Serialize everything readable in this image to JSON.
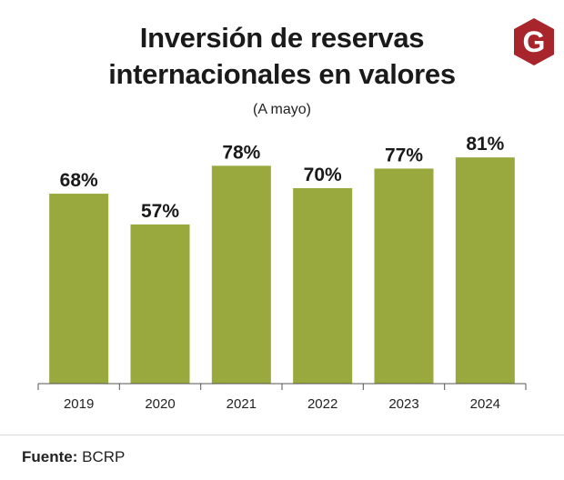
{
  "logo": {
    "letter": "G",
    "color": "#a8252b"
  },
  "chart_data": {
    "type": "bar",
    "title": "Inversión de reservas internacionales en valores",
    "title_lines": [
      "Inversión de reservas",
      "internacionales en valores"
    ],
    "subtitle": "(A mayo)",
    "categories": [
      "2019",
      "2020",
      "2021",
      "2022",
      "2023",
      "2024"
    ],
    "values": [
      68,
      57,
      78,
      70,
      77,
      81
    ],
    "labels": [
      "68%",
      "57%",
      "78%",
      "70%",
      "77%",
      "81%"
    ],
    "unit": "%",
    "ylim": [
      0,
      83
    ],
    "xlabel": "",
    "ylabel": "",
    "grid": false,
    "bar_color": "#99a93d"
  },
  "source": {
    "label": "Fuente:",
    "value": "BCRP"
  }
}
